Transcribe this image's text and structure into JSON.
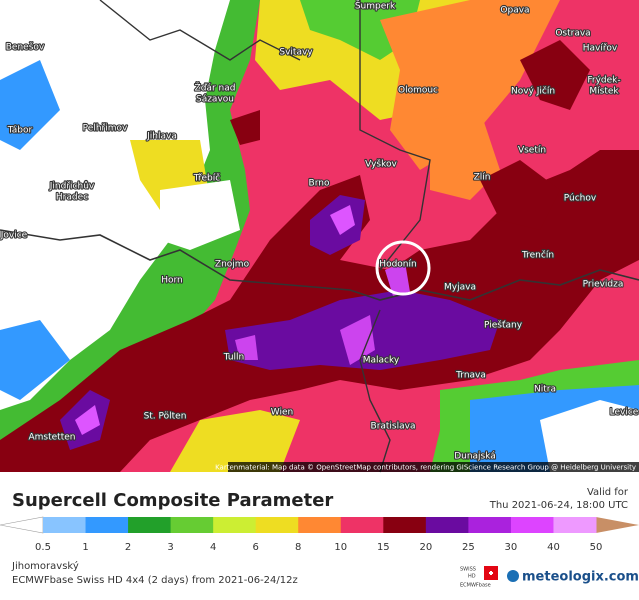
{
  "map": {
    "cities": [
      "Šumperk",
      "Opava",
      "Benešov",
      "Svitavy",
      "Ostrava",
      "Havířov",
      "Žďár nad",
      "Sázavou",
      "Olomouc",
      "Nový Jičín",
      "Frýdek-",
      "Místek",
      "Tábor",
      "Pelhřimov",
      "Jihlava",
      "Vsetín",
      "Vyškov",
      "Třebíč",
      "Jindřichův",
      "Hradec",
      "Brno",
      "Zlín",
      "Púchov",
      "Jovice",
      "Trenčín",
      "Hodonín",
      "Znojmo",
      "Myjava",
      "Prievidza",
      "Horn",
      "Piešťany",
      "Malacky",
      "Tulln",
      "Trnava",
      "Nitra",
      "St. Pölten",
      "Wien",
      "Levice",
      "Amstetten",
      "Bratislava",
      "Dunajská"
    ],
    "attribution": "Kartenmaterial: Map data © OpenStreetMap contributors, rendering GIScience Research Group @ Heidelberg University"
  },
  "panel": {
    "title": "Supercell Composite Parameter",
    "valid_label": "Valid for",
    "valid_time": "Thu 2021-06-24, 18:00 UTC",
    "legend": {
      "ticks": [
        0.5,
        1,
        2,
        3,
        4,
        6,
        8,
        10,
        15,
        20,
        25,
        30,
        40,
        50
      ]
    },
    "region": "Jihomoravský",
    "model": "ECMWFbase Swiss HD 4x4 (2 days) from 2021-06-24/12z",
    "logo": {
      "badge_top": "SWISS",
      "badge_hd": "HD",
      "badge_base": "ECMWFbase",
      "site": "meteologix.com"
    }
  }
}
